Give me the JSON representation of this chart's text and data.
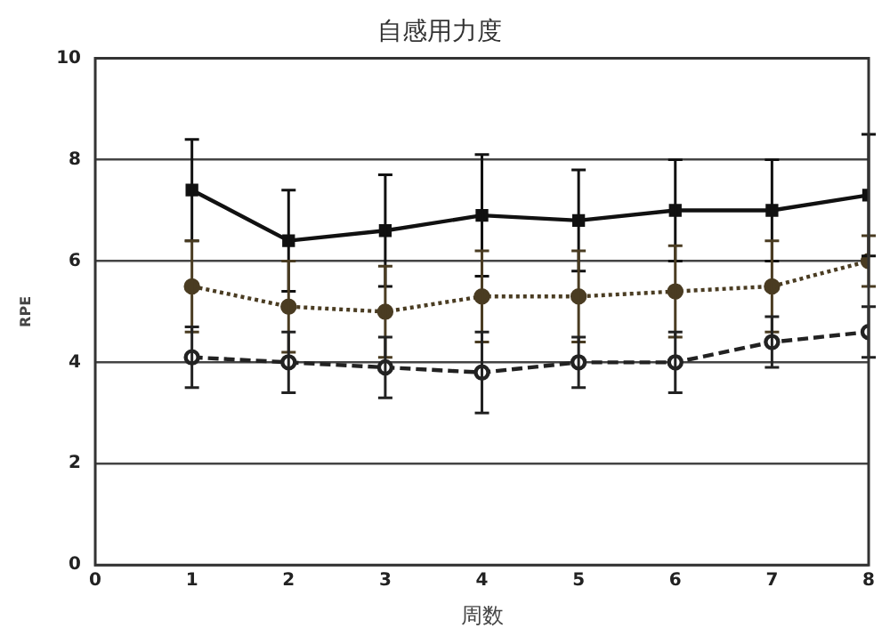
{
  "chart_data": {
    "type": "line",
    "title": "自感用力度",
    "xlabel": "周数",
    "ylabel": "RPE",
    "x": [
      1,
      2,
      3,
      4,
      5,
      6,
      7,
      8
    ],
    "series": [
      {
        "color": "#111111",
        "line_style": "solid",
        "marker": "square",
        "values": [
          7.4,
          6.4,
          6.6,
          6.9,
          6.8,
          7.0,
          7.0,
          7.3
        ],
        "errors": [
          1.0,
          1.0,
          1.1,
          1.2,
          1.0,
          1.0,
          1.0,
          1.2
        ]
      },
      {
        "color": "#4a3c22",
        "line_style": "dotted",
        "marker": "circle",
        "values": [
          5.5,
          5.1,
          5.0,
          5.3,
          5.3,
          5.4,
          5.5,
          6.0
        ],
        "errors": [
          0.9,
          0.9,
          0.9,
          0.9,
          0.9,
          0.9,
          0.9,
          0.5
        ]
      },
      {
        "color": "#222222",
        "line_style": "dashed",
        "marker": "circle",
        "values": [
          4.1,
          4.0,
          3.9,
          3.8,
          4.0,
          4.0,
          4.4,
          4.6
        ],
        "errors": [
          0.6,
          0.6,
          0.6,
          0.8,
          0.5,
          0.6,
          0.5,
          0.5
        ]
      }
    ],
    "xlim": [
      0,
      8
    ],
    "xticks": [
      0,
      1,
      2,
      3,
      4,
      5,
      6,
      7,
      8
    ],
    "ylim": [
      0,
      10
    ],
    "yticks": [
      0,
      2,
      4,
      6,
      8,
      10
    ],
    "grid": "y",
    "legend": false
  }
}
